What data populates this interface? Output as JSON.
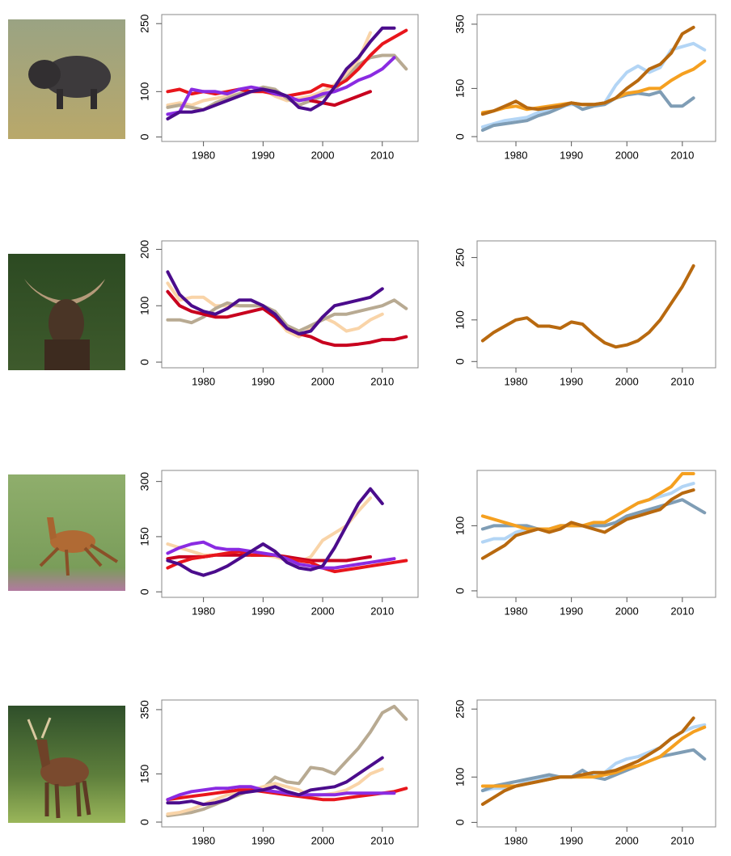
{
  "chart_data": [
    {
      "type": "line",
      "x": [
        1974,
        1976,
        1978,
        1980,
        1982,
        1984,
        1986,
        1988,
        1990,
        1992,
        1994,
        1996,
        1998,
        2000,
        2002,
        2004,
        2006,
        2008,
        2010,
        2012,
        2014
      ],
      "xlim": [
        1973,
        2016
      ],
      "xticks": [
        1980,
        1990,
        2000,
        2010
      ],
      "ylim": [
        -10,
        270
      ],
      "yticks": [
        0,
        100,
        250
      ],
      "series": [
        {
          "color": "#f9d4a8",
          "values": [
            70,
            75,
            70,
            80,
            85,
            90,
            95,
            100,
            105,
            90,
            80,
            85,
            90,
            100,
            115,
            140,
            170,
            230,
            null,
            null,
            null
          ]
        },
        {
          "color": "#b8aa92",
          "values": [
            65,
            70,
            65,
            60,
            75,
            85,
            95,
            100,
            110,
            105,
            85,
            70,
            80,
            90,
            105,
            130,
            160,
            175,
            180,
            180,
            150
          ]
        },
        {
          "color": "#e8161c",
          "values": [
            100,
            105,
            95,
            100,
            95,
            100,
            105,
            100,
            100,
            95,
            90,
            95,
            100,
            115,
            110,
            125,
            150,
            180,
            205,
            220,
            235
          ]
        },
        {
          "color": "#c8001e",
          "values": [
            null,
            null,
            null,
            null,
            null,
            null,
            null,
            null,
            null,
            null,
            null,
            null,
            80,
            75,
            70,
            80,
            90,
            100,
            null,
            null,
            null
          ]
        },
        {
          "color": "#8a2be2",
          "values": [
            50,
            55,
            105,
            100,
            100,
            95,
            105,
            110,
            105,
            95,
            90,
            80,
            85,
            95,
            100,
            110,
            125,
            135,
            150,
            175,
            null
          ]
        },
        {
          "color": "#4b0c8c",
          "values": [
            40,
            55,
            55,
            60,
            70,
            80,
            90,
            100,
            105,
            100,
            90,
            65,
            60,
            75,
            110,
            150,
            175,
            210,
            240,
            240,
            null
          ]
        }
      ]
    },
    {
      "type": "line",
      "x": [
        1974,
        1976,
        1978,
        1980,
        1982,
        1984,
        1986,
        1988,
        1990,
        1992,
        1994,
        1996,
        1998,
        2000,
        2002,
        2004,
        2006,
        2008,
        2010,
        2012,
        2014
      ],
      "xlim": [
        1973,
        2016
      ],
      "xticks": [
        1980,
        1990,
        2000,
        2010
      ],
      "ylim": [
        -15,
        380
      ],
      "yticks": [
        0,
        150,
        350
      ],
      "series": [
        {
          "color": "#b3d5f5",
          "values": [
            30,
            40,
            50,
            55,
            60,
            75,
            85,
            95,
            100,
            100,
            100,
            105,
            160,
            200,
            220,
            200,
            215,
            270,
            280,
            290,
            270
          ]
        },
        {
          "color": "#7f9db5",
          "values": [
            20,
            35,
            40,
            45,
            50,
            65,
            75,
            90,
            105,
            85,
            95,
            100,
            120,
            130,
            135,
            130,
            140,
            95,
            95,
            120,
            null
          ]
        },
        {
          "color": "#f5a020",
          "values": [
            75,
            80,
            90,
            95,
            85,
            90,
            95,
            100,
            105,
            100,
            100,
            105,
            120,
            135,
            140,
            150,
            150,
            175,
            195,
            210,
            235
          ]
        },
        {
          "color": "#b8690f",
          "values": [
            70,
            80,
            95,
            110,
            90,
            85,
            90,
            95,
            105,
            100,
            100,
            105,
            120,
            150,
            175,
            210,
            225,
            260,
            320,
            340,
            null
          ]
        }
      ]
    },
    {
      "type": "line",
      "x": [
        1974,
        1976,
        1978,
        1980,
        1982,
        1984,
        1986,
        1988,
        1990,
        1992,
        1994,
        1996,
        1998,
        2000,
        2002,
        2004,
        2006,
        2008,
        2010,
        2012,
        2014
      ],
      "xlim": [
        1973,
        2016
      ],
      "xticks": [
        1980,
        1990,
        2000,
        2010
      ],
      "ylim": [
        -10,
        215
      ],
      "yticks": [
        0,
        100,
        200
      ],
      "series": [
        {
          "color": "#f9d4a8",
          "values": [
            140,
            110,
            115,
            115,
            100,
            100,
            100,
            100,
            100,
            80,
            55,
            45,
            60,
            80,
            70,
            55,
            60,
            75,
            85,
            null,
            null
          ]
        },
        {
          "color": "#b8aa92",
          "values": [
            75,
            75,
            70,
            80,
            95,
            105,
            100,
            100,
            100,
            90,
            65,
            55,
            65,
            75,
            85,
            85,
            90,
            95,
            100,
            110,
            95
          ]
        },
        {
          "color": "#c8001e",
          "values": [
            125,
            100,
            90,
            85,
            80,
            80,
            85,
            90,
            95,
            80,
            60,
            50,
            45,
            35,
            30,
            30,
            32,
            35,
            40,
            40,
            45
          ]
        },
        {
          "color": "#4b0c8c",
          "values": [
            160,
            120,
            100,
            90,
            85,
            95,
            110,
            110,
            100,
            85,
            60,
            50,
            55,
            80,
            100,
            105,
            110,
            115,
            130,
            null,
            null
          ]
        }
      ]
    },
    {
      "type": "line",
      "x": [
        1974,
        1976,
        1978,
        1980,
        1982,
        1984,
        1986,
        1988,
        1990,
        1992,
        1994,
        1996,
        1998,
        2000,
        2002,
        2004,
        2006,
        2008,
        2010,
        2012,
        2014
      ],
      "xlim": [
        1973,
        2016
      ],
      "xticks": [
        1980,
        1990,
        2000,
        2010
      ],
      "ylim": [
        -15,
        290
      ],
      "yticks": [
        0,
        100,
        250
      ],
      "series": [
        {
          "color": "#b8690f",
          "values": [
            50,
            70,
            85,
            100,
            105,
            85,
            85,
            80,
            95,
            90,
            65,
            45,
            35,
            40,
            50,
            70,
            100,
            140,
            180,
            230,
            null
          ]
        }
      ]
    },
    {
      "type": "line",
      "x": [
        1974,
        1976,
        1978,
        1980,
        1982,
        1984,
        1986,
        1988,
        1990,
        1992,
        1994,
        1996,
        1998,
        2000,
        2002,
        2004,
        2006,
        2008,
        2010,
        2012,
        2014
      ],
      "xlim": [
        1973,
        2016
      ],
      "xticks": [
        1980,
        1990,
        2000,
        2010
      ],
      "ylim": [
        -15,
        330
      ],
      "yticks": [
        0,
        150,
        300
      ],
      "series": [
        {
          "color": "#f9d4a8",
          "values": [
            130,
            120,
            110,
            100,
            100,
            105,
            105,
            100,
            100,
            95,
            85,
            80,
            95,
            140,
            160,
            180,
            220,
            255,
            null,
            null,
            null
          ]
        },
        {
          "color": "#c8001e",
          "values": [
            90,
            95,
            95,
            95,
            100,
            100,
            100,
            100,
            100,
            100,
            95,
            90,
            85,
            85,
            85,
            85,
            90,
            95,
            null,
            null,
            null
          ]
        },
        {
          "color": "#e8161c",
          "values": [
            65,
            80,
            90,
            95,
            100,
            105,
            110,
            100,
            100,
            100,
            90,
            85,
            80,
            65,
            55,
            60,
            65,
            70,
            75,
            80,
            85
          ]
        },
        {
          "color": "#8a2be2",
          "values": [
            105,
            120,
            130,
            135,
            120,
            115,
            115,
            110,
            105,
            100,
            90,
            75,
            70,
            65,
            65,
            70,
            75,
            80,
            85,
            90,
            null
          ]
        },
        {
          "color": "#4b0c8c",
          "values": [
            85,
            75,
            55,
            45,
            55,
            70,
            90,
            110,
            130,
            110,
            80,
            65,
            60,
            70,
            120,
            180,
            240,
            280,
            240,
            null,
            null
          ]
        }
      ]
    },
    {
      "type": "line",
      "x": [
        1974,
        1976,
        1978,
        1980,
        1982,
        1984,
        1986,
        1988,
        1990,
        1992,
        1994,
        1996,
        1998,
        2000,
        2002,
        2004,
        2006,
        2008,
        2010,
        2012,
        2014
      ],
      "xlim": [
        1973,
        2016
      ],
      "xticks": [
        1980,
        1990,
        2000,
        2010
      ],
      "ylim": [
        -10,
        185
      ],
      "yticks": [
        0,
        100
      ],
      "series": [
        {
          "color": "#b3d5f5",
          "values": [
            75,
            80,
            80,
            90,
            95,
            95,
            95,
            100,
            100,
            100,
            100,
            105,
            115,
            125,
            135,
            140,
            145,
            150,
            160,
            165,
            null
          ]
        },
        {
          "color": "#7f9db5",
          "values": [
            95,
            100,
            100,
            100,
            100,
            95,
            95,
            100,
            100,
            100,
            100,
            100,
            105,
            115,
            120,
            125,
            130,
            135,
            140,
            130,
            120
          ]
        },
        {
          "color": "#f5a020",
          "values": [
            115,
            110,
            105,
            100,
            95,
            95,
            95,
            100,
            100,
            100,
            105,
            105,
            115,
            125,
            135,
            140,
            150,
            160,
            180,
            180,
            null
          ]
        },
        {
          "color": "#b8690f",
          "values": [
            50,
            60,
            70,
            85,
            90,
            95,
            90,
            95,
            105,
            100,
            95,
            90,
            100,
            110,
            115,
            120,
            125,
            140,
            150,
            155,
            null
          ]
        }
      ]
    },
    {
      "type": "line",
      "x": [
        1974,
        1976,
        1978,
        1980,
        1982,
        1984,
        1986,
        1988,
        1990,
        1992,
        1994,
        1996,
        1998,
        2000,
        2002,
        2004,
        2006,
        2008,
        2010,
        2012,
        2014
      ],
      "xlim": [
        1973,
        2016
      ],
      "xticks": [
        1980,
        1990,
        2000,
        2010
      ],
      "ylim": [
        -15,
        380
      ],
      "yticks": [
        0,
        150,
        350
      ],
      "series": [
        {
          "color": "#b8aa92",
          "values": [
            20,
            25,
            30,
            40,
            55,
            70,
            85,
            100,
            105,
            140,
            125,
            120,
            170,
            165,
            150,
            190,
            230,
            280,
            340,
            360,
            320
          ]
        },
        {
          "color": "#f9d4a8",
          "values": [
            25,
            30,
            40,
            55,
            70,
            85,
            90,
            100,
            110,
            120,
            110,
            100,
            80,
            85,
            90,
            100,
            120,
            150,
            165,
            null,
            null
          ]
        },
        {
          "color": "#e8161c",
          "values": [
            70,
            75,
            80,
            85,
            90,
            95,
            100,
            100,
            95,
            90,
            85,
            80,
            75,
            70,
            70,
            75,
            80,
            85,
            90,
            95,
            105
          ]
        },
        {
          "color": "#8a2be2",
          "values": [
            70,
            85,
            95,
            100,
            105,
            105,
            110,
            110,
            100,
            95,
            90,
            85,
            85,
            85,
            85,
            90,
            90,
            90,
            90,
            90,
            null
          ]
        },
        {
          "color": "#4b0c8c",
          "values": [
            60,
            60,
            65,
            55,
            60,
            70,
            90,
            95,
            100,
            110,
            95,
            85,
            100,
            105,
            110,
            125,
            150,
            175,
            200,
            null,
            null
          ]
        }
      ]
    },
    {
      "type": "line",
      "x": [
        1974,
        1976,
        1978,
        1980,
        1982,
        1984,
        1986,
        1988,
        1990,
        1992,
        1994,
        1996,
        1998,
        2000,
        2002,
        2004,
        2006,
        2008,
        2010,
        2012,
        2014
      ],
      "xlim": [
        1973,
        2016
      ],
      "xticks": [
        1980,
        1990,
        2000,
        2010
      ],
      "ylim": [
        -10,
        270
      ],
      "yticks": [
        0,
        100,
        250
      ],
      "series": [
        {
          "color": "#b3d5f5",
          "values": [
            70,
            75,
            75,
            80,
            90,
            95,
            100,
            100,
            100,
            100,
            105,
            110,
            130,
            140,
            145,
            155,
            165,
            185,
            200,
            210,
            215
          ]
        },
        {
          "color": "#7f9db5",
          "values": [
            70,
            80,
            85,
            90,
            95,
            100,
            105,
            100,
            100,
            115,
            100,
            95,
            105,
            115,
            125,
            135,
            145,
            150,
            155,
            160,
            140
          ]
        },
        {
          "color": "#f5a020",
          "values": [
            80,
            80,
            80,
            80,
            85,
            90,
            95,
            100,
            100,
            100,
            100,
            105,
            110,
            120,
            125,
            135,
            145,
            165,
            185,
            200,
            210
          ]
        },
        {
          "color": "#b8690f",
          "values": [
            40,
            55,
            70,
            80,
            85,
            90,
            95,
            100,
            100,
            105,
            110,
            110,
            115,
            125,
            135,
            150,
            165,
            185,
            200,
            230,
            null
          ]
        }
      ]
    }
  ]
}
